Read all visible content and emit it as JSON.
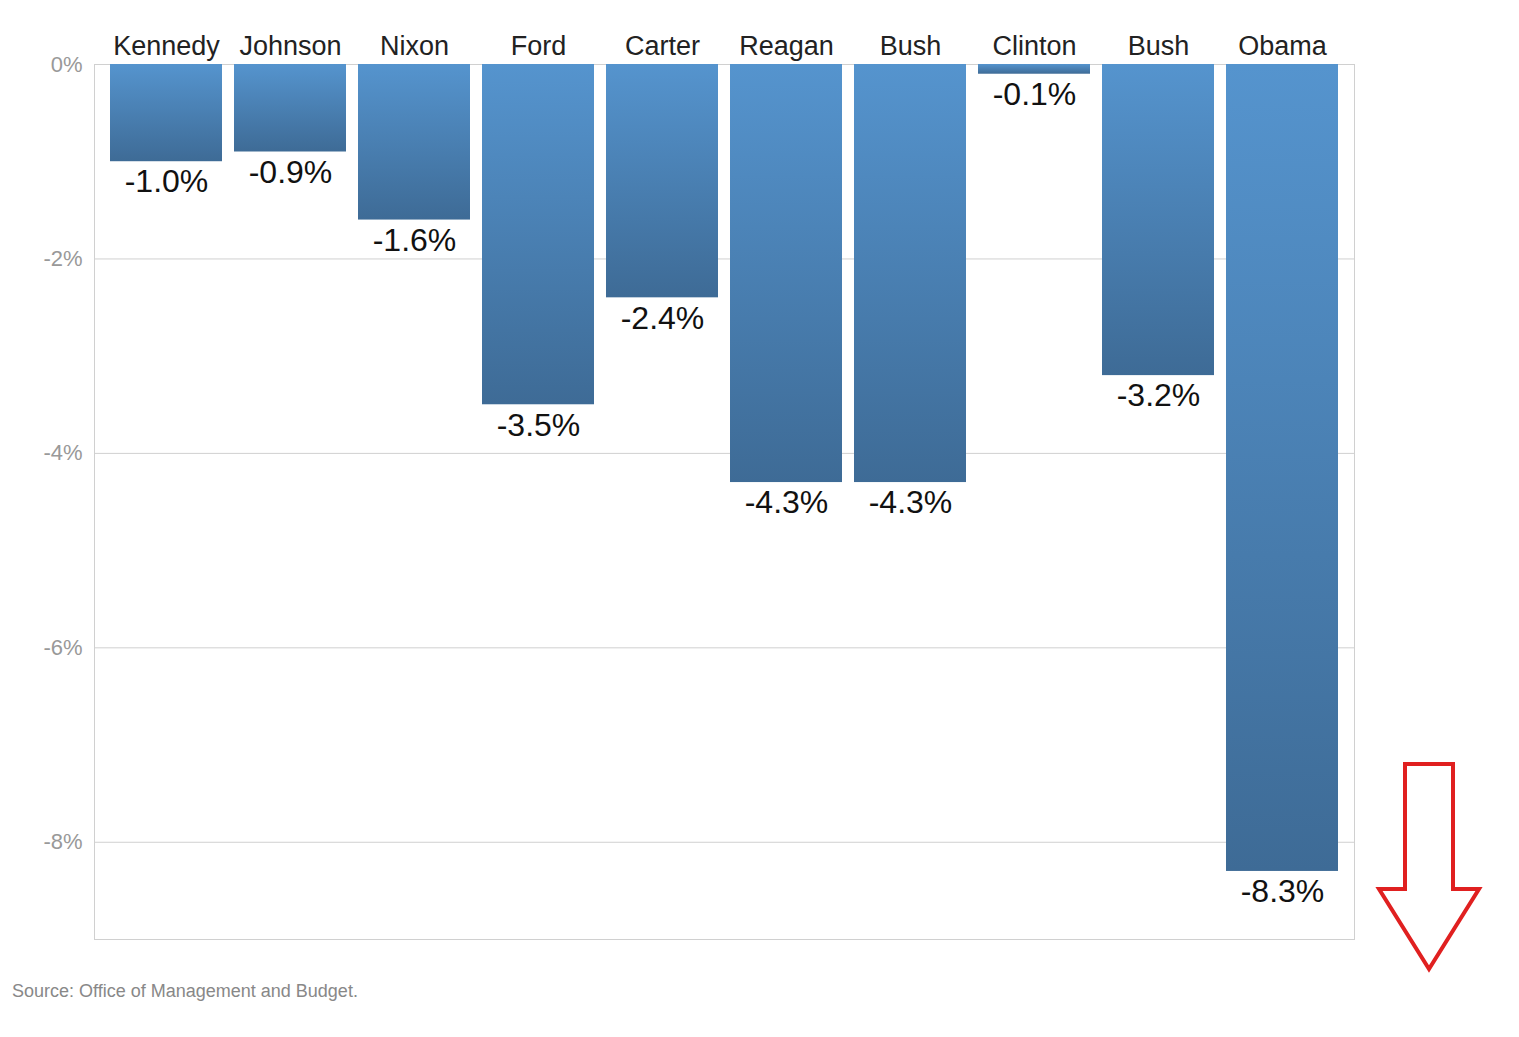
{
  "chart_data": {
    "type": "bar",
    "categories": [
      "Kennedy",
      "Johnson",
      "Nixon",
      "Ford",
      "Carter",
      "Reagan",
      "Bush",
      "Clinton",
      "Bush",
      "Obama"
    ],
    "values": [
      -1.0,
      -0.9,
      -1.6,
      -3.5,
      -2.4,
      -4.3,
      -4.3,
      -0.1,
      -3.2,
      -8.3
    ],
    "value_labels": [
      "-1.0%",
      "-0.9%",
      "-1.6%",
      "-3.5%",
      "-2.4%",
      "-4.3%",
      "-4.3%",
      "-0.1%",
      "-3.2%",
      "-8.3%"
    ],
    "color": "#4a80b3",
    "ylim": [
      -9,
      0
    ],
    "yticks": [
      {
        "value": 0,
        "label": "0%"
      },
      {
        "value": -2,
        "label": "-2%"
      },
      {
        "value": -4,
        "label": "-4%"
      },
      {
        "value": -6,
        "label": "-6%"
      },
      {
        "value": -8,
        "label": "-8%"
      }
    ],
    "grid": true,
    "data_labels": true,
    "caption": "Source: Office of Management and Budget."
  }
}
